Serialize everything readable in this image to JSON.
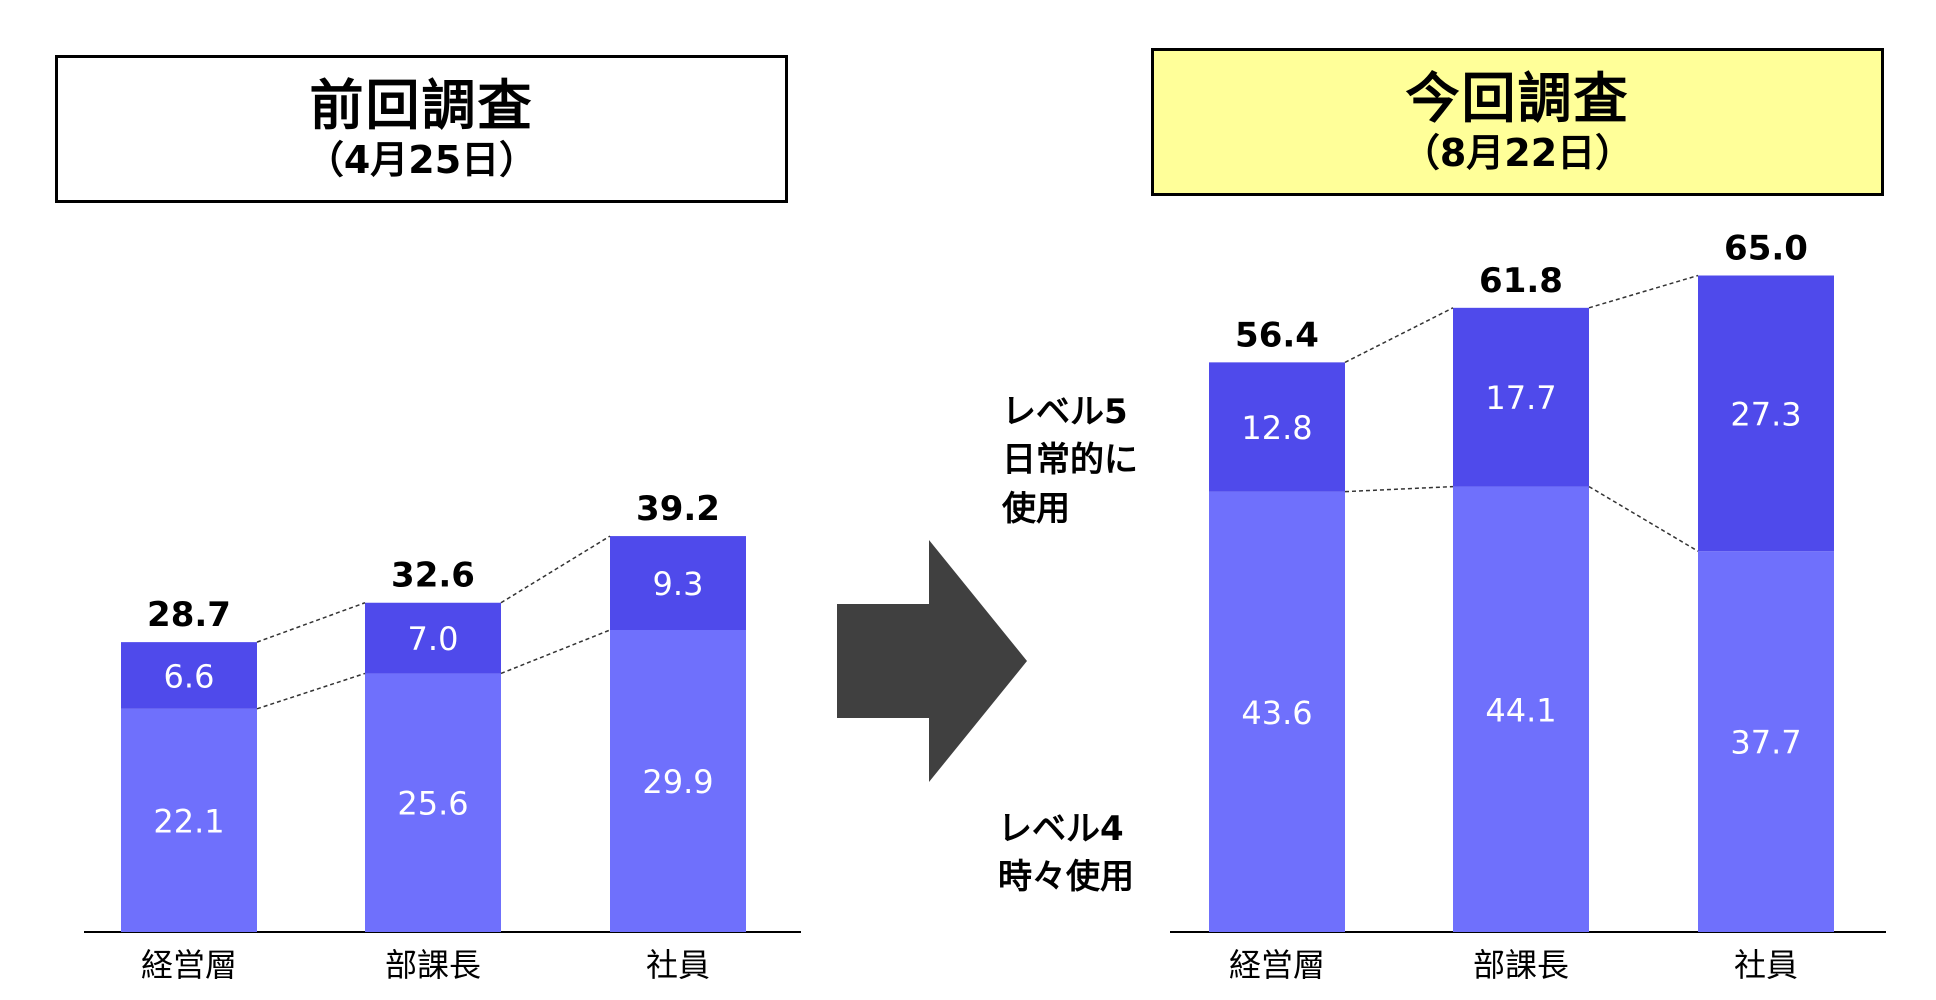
{
  "panels": {
    "previous": {
      "title": "前回調査",
      "subtitle": "（4月25日）"
    },
    "current": {
      "title": "今回調査",
      "subtitle": "（8月22日）"
    }
  },
  "legend_labels": {
    "level5": [
      "レベル5",
      "日常的に",
      "使用"
    ],
    "level4": [
      "レベル4",
      "時々使用"
    ]
  },
  "colors": {
    "level5": "#4f4aeb",
    "level4": "#6f70fc",
    "arrow": "#404040",
    "highlight_box": "#ffff99"
  },
  "chart_data": [
    {
      "type": "bar",
      "stacked": true,
      "categories": [
        "経営層",
        "部課長",
        "社員"
      ],
      "series": [
        {
          "values": [
            22.1,
            25.6,
            29.9
          ]
        },
        {
          "values": [
            6.6,
            7.0,
            9.3
          ]
        }
      ],
      "totals": [
        "28.7",
        "32.6",
        "39.2"
      ],
      "value_labels": [
        [
          "22.1",
          "25.6",
          "29.9"
        ],
        [
          "6.6",
          "7.0",
          "9.3"
        ]
      ]
    },
    {
      "type": "bar",
      "stacked": true,
      "categories": [
        "経営層",
        "部課長",
        "社員"
      ],
      "series": [
        {
          "name": "レベル4 時々使用",
          "values": [
            43.6,
            44.1,
            37.7
          ]
        },
        {
          "name": "レベル5 日常的に使用",
          "values": [
            12.8,
            17.7,
            27.3
          ]
        }
      ],
      "totals": [
        "56.4",
        "61.8",
        "65.0"
      ],
      "value_labels": [
        [
          "43.6",
          "44.1",
          "37.7"
        ],
        [
          "12.8",
          "17.7",
          "27.3"
        ]
      ]
    }
  ]
}
